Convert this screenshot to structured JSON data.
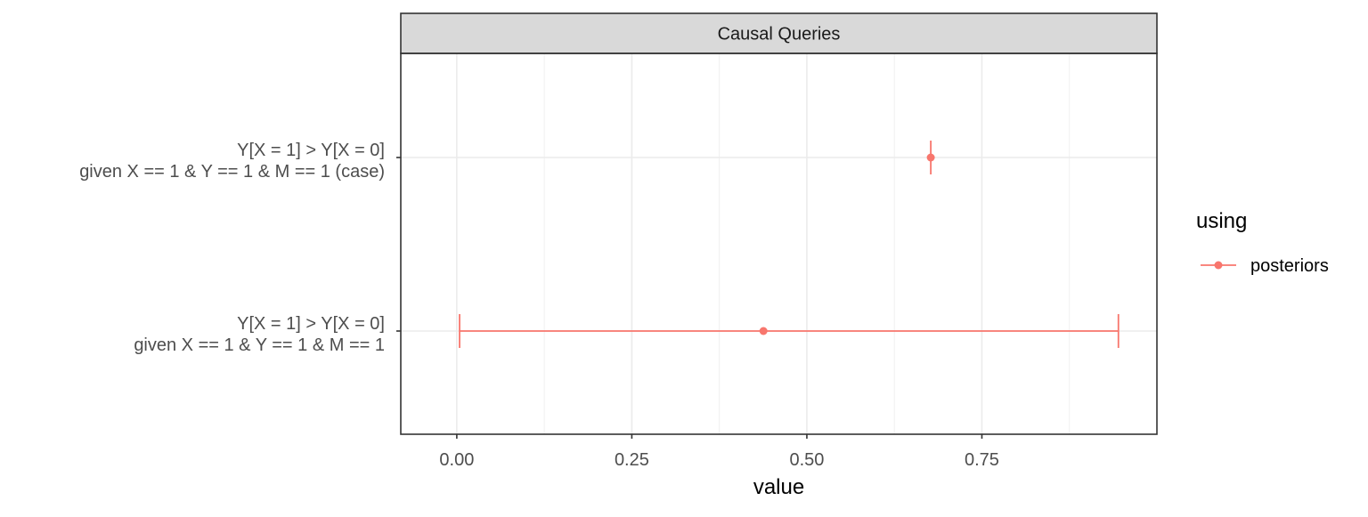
{
  "chart_data": {
    "type": "scatter",
    "facet_title": "Causal Queries",
    "xlabel": "value",
    "ylabel": "",
    "xlim": [
      -0.08,
      1.0
    ],
    "x_ticks": [
      0.0,
      0.25,
      0.5,
      0.75
    ],
    "x_tick_labels": [
      "0.00",
      "0.25",
      "0.50",
      "0.75"
    ],
    "grid": true,
    "categories": [
      {
        "line1": "Y[X = 1] > Y[X = 0]",
        "line2": "given X == 1 & Y == 1 & M == 1 (case)"
      },
      {
        "line1": "Y[X = 1] > Y[X = 0]",
        "line2": "given X == 1 & Y == 1 & M == 1"
      }
    ],
    "series": [
      {
        "name": "posteriors",
        "color": "#F8766D",
        "points": [
          {
            "category": 0,
            "value": 0.677,
            "lower": 0.677,
            "upper": 0.677
          },
          {
            "category": 1,
            "value": 0.438,
            "lower": 0.004,
            "upper": 0.945
          }
        ]
      }
    ],
    "legend": {
      "title": "using",
      "position": "right",
      "items": [
        "posteriors"
      ]
    }
  }
}
